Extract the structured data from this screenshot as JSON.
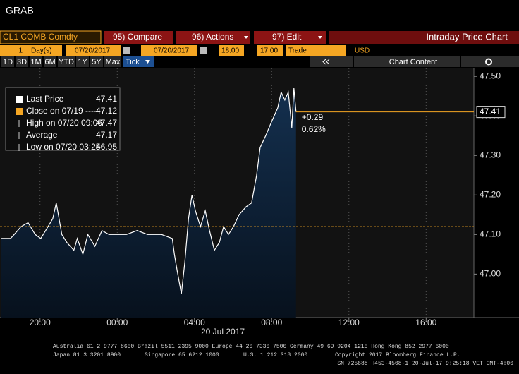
{
  "header": {
    "title": "GRAB"
  },
  "toolbar": {
    "security": "CL1 COMB Comdty",
    "menus": [
      "95) Compare",
      "96) Actions",
      "97) Edit"
    ],
    "function_title": "Intraday Price Chart"
  },
  "controls": {
    "period": "1",
    "period_unit": "Day(s)",
    "start_date": "07/20/2017",
    "end_date": "07/20/2017",
    "start_time": "18:00",
    "end_time": "17:00",
    "field": "Trade",
    "currency": "USD",
    "ranges": [
      "1D",
      "3D",
      "1M",
      "6M",
      "YTD",
      "1Y",
      "5Y",
      "Max",
      "Tick"
    ],
    "chart_content": "Chart Content"
  },
  "chart_data": {
    "type": "line",
    "series": [
      {
        "name": "Last Price",
        "color": "#ffffff",
        "fill": "#14304f",
        "x": [
          0,
          0.47,
          0.66,
          1.02,
          1.38,
          1.75,
          2.04,
          2.29,
          2.66,
          2.84,
          3.13,
          3.39,
          3.75,
          3.93,
          4.22,
          4.48,
          4.84,
          5.21,
          5.57,
          5.94,
          6.48,
          7.03,
          7.57,
          8.3,
          8.85,
          8.96,
          9.1,
          9.32,
          9.5,
          9.69,
          9.87,
          10.05,
          10.31,
          10.56,
          10.78,
          11.03,
          11.29,
          11.51,
          11.76,
          12.02,
          12.31,
          12.67,
          12.96,
          13.22,
          13.4,
          13.69,
          13.95,
          14.13,
          14.31,
          14.49,
          14.68,
          14.86,
          15.04,
          15.15,
          15.26
        ],
        "values": [
          47.09,
          47.09,
          47.1,
          47.12,
          47.13,
          47.1,
          47.09,
          47.11,
          47.14,
          47.18,
          47.1,
          47.08,
          47.06,
          47.09,
          47.05,
          47.1,
          47.07,
          47.11,
          47.1,
          47.1,
          47.1,
          47.11,
          47.1,
          47.1,
          47.09,
          47.05,
          47.01,
          46.95,
          47.03,
          47.14,
          47.2,
          47.16,
          47.12,
          47.16,
          47.11,
          47.06,
          47.08,
          47.12,
          47.1,
          47.12,
          47.15,
          47.17,
          47.18,
          47.25,
          47.32,
          47.35,
          47.38,
          47.4,
          47.42,
          47.46,
          47.44,
          47.46,
          47.37,
          47.47,
          47.41
        ]
      }
    ],
    "reference_color": "#f5a623",
    "legend": [
      {
        "label": "Last Price",
        "value": 47.41
      },
      {
        "label": "Close on 07/19 ----",
        "value": 47.12
      },
      {
        "label": "High on 07/20 09:06",
        "value": 47.47
      },
      {
        "label": "Average",
        "value": 47.17
      },
      {
        "label": "Low on 07/20 03:25",
        "value": 46.95
      }
    ],
    "annotations": [
      "+0.29",
      "0.62%"
    ],
    "xlim": [
      0,
      24.4
    ],
    "xticks": [
      {
        "value": 2,
        "label": "20:00"
      },
      {
        "value": 6,
        "label": "00:00"
      },
      {
        "value": 10,
        "label": "04:00"
      },
      {
        "value": 14,
        "label": "08:00"
      },
      {
        "value": 18,
        "label": "12:00"
      },
      {
        "value": 22,
        "label": "16:00"
      }
    ],
    "x_label": "20 Jul 2017",
    "ylim": [
      46.89,
      47.52
    ],
    "yticks": [
      {
        "value": 47,
        "label": "47.00"
      },
      {
        "value": 47.1,
        "label": "47.10"
      },
      {
        "value": 47.2,
        "label": "47.20"
      },
      {
        "value": 47.3,
        "label": "47.30"
      },
      {
        "value": 47.4,
        "label": "47.40"
      },
      {
        "value": 47.5,
        "label": "47.50"
      }
    ]
  },
  "footer": {
    "line1": "Australia 61 2 9777 8600 Brazil 5511 2395 9000 Europe 44 20 7330 7500 Germany 49 69 9204 1210 Hong Kong 852 2977 6000",
    "line2a": "Japan 81 3 3201 8900",
    "line2b": "Singapore 65 6212 1000",
    "line2c": "U.S. 1 212 318 2000",
    "line2d": "Copyright 2017 Bloomberg Finance L.P.",
    "line3": "SN 725688 H453-4508-1 20-Jul-17  9:25:18 VET  GMT-4:00"
  }
}
